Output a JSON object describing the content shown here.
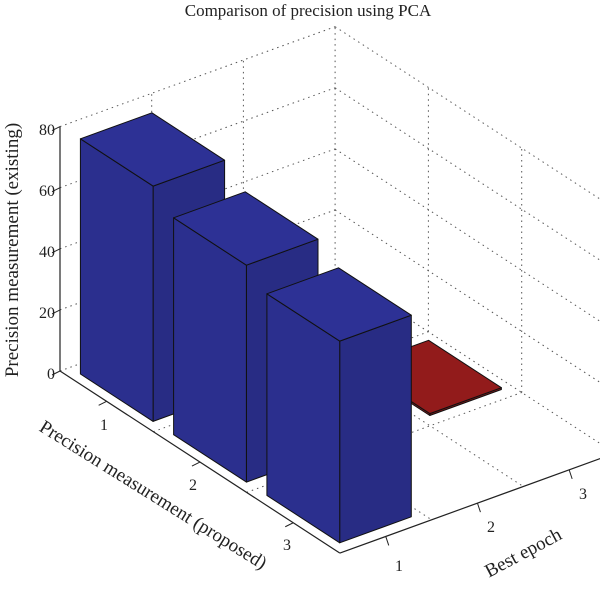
{
  "chart_data": {
    "type": "bar3d",
    "title": "Comparison of precision using PCA",
    "zlabel": "Precision measurement (existing)",
    "ylabel": "Precision measurement (proposed)",
    "xlabel": "Best epoch",
    "z_ticks": [
      "0",
      "20",
      "40",
      "60",
      "80"
    ],
    "zlim": [
      0,
      80
    ],
    "y_ticks": [
      "1",
      "2",
      "3"
    ],
    "x_ticks": [
      "1",
      "2",
      "3"
    ],
    "grid": true,
    "bars": [
      {
        "proposed": 1,
        "epoch": 1,
        "value": 77,
        "color": "#2b2f8e"
      },
      {
        "proposed": 2,
        "epoch": 1,
        "value": 71,
        "color": "#2b2f8e"
      },
      {
        "proposed": 3,
        "epoch": 1,
        "value": 66,
        "color": "#2b2f8e"
      },
      {
        "proposed": 1,
        "epoch": 2,
        "value": 0,
        "color": "#8b1a1a"
      },
      {
        "proposed": 2,
        "epoch": 2,
        "value": 0,
        "color": "#98d860"
      },
      {
        "proposed": 1,
        "epoch": 3,
        "value": 0,
        "color": "#8b1a1a"
      },
      {
        "proposed": 2,
        "epoch": 3,
        "value": 0,
        "color": "#8b1a1a"
      }
    ]
  }
}
